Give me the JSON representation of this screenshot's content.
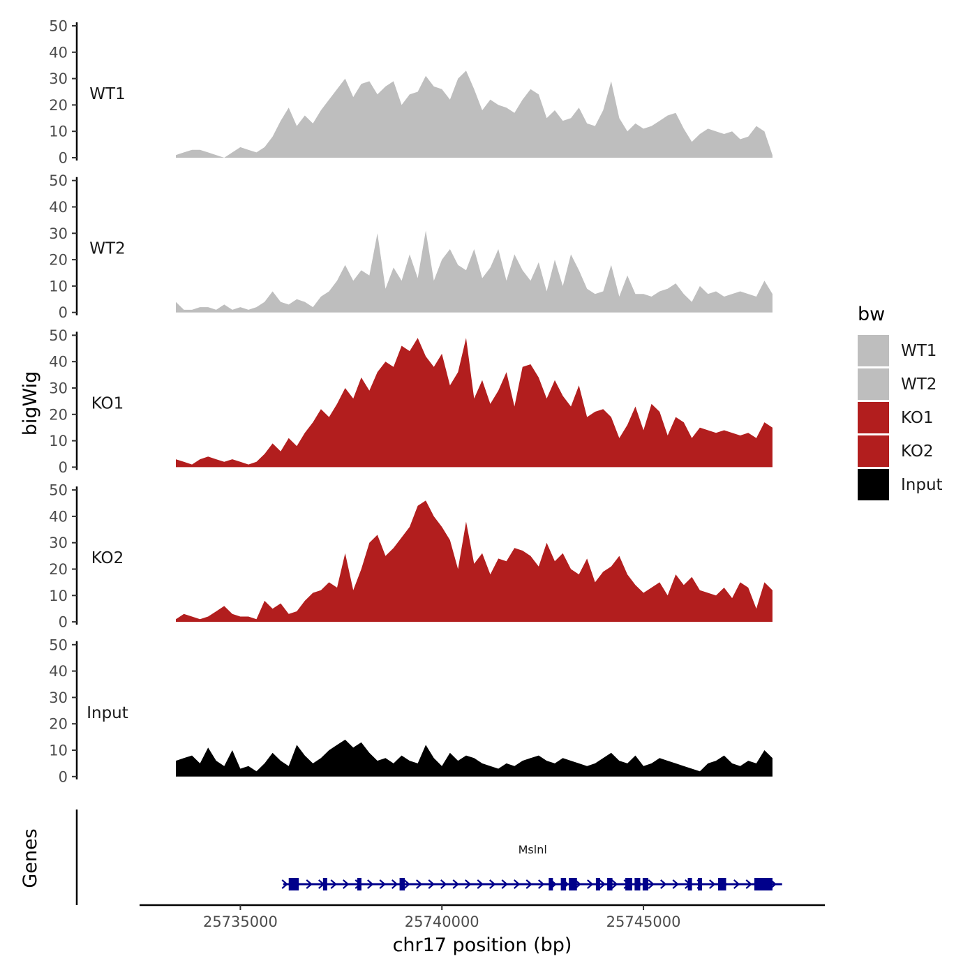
{
  "chart_data": {
    "type": "area",
    "x_axis": {
      "title": "chr17 position (bp)",
      "range": [
        25732500,
        25749500
      ],
      "ticks": [
        25735000,
        25740000,
        25745000
      ],
      "tick_labels": [
        "25735000",
        "25740000",
        "25745000"
      ]
    },
    "y_axis": {
      "title": "bigWig",
      "range": [
        0,
        50
      ],
      "ticks": [
        0,
        10,
        20,
        30,
        40,
        50
      ],
      "tick_labels": [
        "0",
        "10",
        "20",
        "30",
        "40",
        "50"
      ]
    },
    "tracks_panel_title": "Genes",
    "legend": {
      "title": "bw",
      "entries": [
        {
          "label": "WT1",
          "color": "#bebebe"
        },
        {
          "label": "WT2",
          "color": "#bebebe"
        },
        {
          "label": "KO1",
          "color": "#b21e1e"
        },
        {
          "label": "KO2",
          "color": "#b21e1e"
        },
        {
          "label": "Input",
          "color": "#000000"
        }
      ]
    },
    "series": [
      {
        "name": "WT1",
        "color": "#bebebe",
        "x": [
          25733400,
          25733600,
          25733800,
          25734000,
          25734200,
          25734400,
          25734600,
          25734800,
          25735000,
          25735200,
          25735400,
          25735600,
          25735800,
          25736000,
          25736200,
          25736400,
          25736600,
          25736800,
          25737000,
          25737200,
          25737400,
          25737600,
          25737800,
          25738000,
          25738200,
          25738400,
          25738600,
          25738800,
          25739000,
          25739200,
          25739400,
          25739600,
          25739800,
          25740000,
          25740200,
          25740400,
          25740600,
          25740800,
          25741000,
          25741200,
          25741400,
          25741600,
          25741800,
          25742000,
          25742200,
          25742400,
          25742600,
          25742800,
          25743000,
          25743200,
          25743400,
          25743600,
          25743800,
          25744000,
          25744200,
          25744400,
          25744600,
          25744800,
          25745000,
          25745200,
          25745400,
          25745600,
          25745800,
          25746000,
          25746200,
          25746400,
          25746600,
          25746800,
          25747000,
          25747200,
          25747400,
          25747600,
          25747800,
          25748000,
          25748200
        ],
        "values": [
          1,
          2,
          3,
          3,
          2,
          1,
          0,
          2,
          4,
          3,
          2,
          4,
          8,
          14,
          19,
          12,
          16,
          13,
          18,
          22,
          26,
          30,
          23,
          28,
          29,
          24,
          27,
          29,
          20,
          24,
          25,
          31,
          27,
          26,
          22,
          30,
          33,
          26,
          18,
          22,
          20,
          19,
          17,
          22,
          26,
          24,
          15,
          18,
          14,
          15,
          19,
          13,
          12,
          18,
          29,
          15,
          10,
          13,
          11,
          12,
          14,
          16,
          17,
          11,
          6,
          9,
          11,
          10,
          9,
          10,
          7,
          8,
          12,
          10,
          1
        ]
      },
      {
        "name": "WT2",
        "color": "#bebebe",
        "x": [
          25733400,
          25733600,
          25733800,
          25734000,
          25734200,
          25734400,
          25734600,
          25734800,
          25735000,
          25735200,
          25735400,
          25735600,
          25735800,
          25736000,
          25736200,
          25736400,
          25736600,
          25736800,
          25737000,
          25737200,
          25737400,
          25737600,
          25737800,
          25738000,
          25738200,
          25738400,
          25738600,
          25738800,
          25739000,
          25739200,
          25739400,
          25739600,
          25739800,
          25740000,
          25740200,
          25740400,
          25740600,
          25740800,
          25741000,
          25741200,
          25741400,
          25741600,
          25741800,
          25742000,
          25742200,
          25742400,
          25742600,
          25742800,
          25743000,
          25743200,
          25743400,
          25743600,
          25743800,
          25744000,
          25744200,
          25744400,
          25744600,
          25744800,
          25745000,
          25745200,
          25745400,
          25745600,
          25745800,
          25746000,
          25746200,
          25746400,
          25746600,
          25746800,
          25747000,
          25747200,
          25747400,
          25747600,
          25747800,
          25748000,
          25748200
        ],
        "values": [
          4,
          1,
          1,
          2,
          2,
          1,
          3,
          1,
          2,
          1,
          2,
          4,
          8,
          4,
          3,
          5,
          4,
          2,
          6,
          8,
          12,
          18,
          12,
          16,
          14,
          30,
          9,
          17,
          12,
          22,
          13,
          31,
          12,
          20,
          24,
          18,
          16,
          24,
          13,
          17,
          24,
          12,
          22,
          16,
          12,
          19,
          8,
          20,
          10,
          22,
          16,
          9,
          7,
          8,
          18,
          6,
          14,
          7,
          7,
          6,
          8,
          9,
          11,
          7,
          4,
          10,
          7,
          8,
          6,
          7,
          8,
          7,
          6,
          12,
          7
        ]
      },
      {
        "name": "KO1",
        "color": "#b21e1e",
        "x": [
          25733400,
          25733600,
          25733800,
          25734000,
          25734200,
          25734400,
          25734600,
          25734800,
          25735000,
          25735200,
          25735400,
          25735600,
          25735800,
          25736000,
          25736200,
          25736400,
          25736600,
          25736800,
          25737000,
          25737200,
          25737400,
          25737600,
          25737800,
          25738000,
          25738200,
          25738400,
          25738600,
          25738800,
          25739000,
          25739200,
          25739400,
          25739600,
          25739800,
          25740000,
          25740200,
          25740400,
          25740600,
          25740800,
          25741000,
          25741200,
          25741400,
          25741600,
          25741800,
          25742000,
          25742200,
          25742400,
          25742600,
          25742800,
          25743000,
          25743200,
          25743400,
          25743600,
          25743800,
          25744000,
          25744200,
          25744400,
          25744600,
          25744800,
          25745000,
          25745200,
          25745400,
          25745600,
          25745800,
          25746000,
          25746200,
          25746400,
          25746600,
          25746800,
          25747000,
          25747200,
          25747400,
          25747600,
          25747800,
          25748000,
          25748200
        ],
        "values": [
          3,
          2,
          1,
          3,
          4,
          3,
          2,
          3,
          2,
          1,
          2,
          5,
          9,
          6,
          11,
          8,
          13,
          17,
          22,
          19,
          24,
          30,
          26,
          34,
          29,
          36,
          40,
          38,
          46,
          44,
          49,
          42,
          38,
          43,
          31,
          36,
          49,
          26,
          33,
          24,
          29,
          36,
          23,
          38,
          39,
          34,
          26,
          33,
          27,
          23,
          31,
          19,
          21,
          22,
          19,
          11,
          16,
          23,
          14,
          24,
          21,
          12,
          19,
          17,
          11,
          15,
          14,
          13,
          14,
          13,
          12,
          13,
          11,
          17,
          15
        ]
      },
      {
        "name": "KO2",
        "color": "#b21e1e",
        "x": [
          25733400,
          25733600,
          25733800,
          25734000,
          25734200,
          25734400,
          25734600,
          25734800,
          25735000,
          25735200,
          25735400,
          25735600,
          25735800,
          25736000,
          25736200,
          25736400,
          25736600,
          25736800,
          25737000,
          25737200,
          25737400,
          25737600,
          25737800,
          25738000,
          25738200,
          25738400,
          25738600,
          25738800,
          25739000,
          25739200,
          25739400,
          25739600,
          25739800,
          25740000,
          25740200,
          25740400,
          25740600,
          25740800,
          25741000,
          25741200,
          25741400,
          25741600,
          25741800,
          25742000,
          25742200,
          25742400,
          25742600,
          25742800,
          25743000,
          25743200,
          25743400,
          25743600,
          25743800,
          25744000,
          25744200,
          25744400,
          25744600,
          25744800,
          25745000,
          25745200,
          25745400,
          25745600,
          25745800,
          25746000,
          25746200,
          25746400,
          25746600,
          25746800,
          25747000,
          25747200,
          25747400,
          25747600,
          25747800,
          25748000,
          25748200
        ],
        "values": [
          1,
          3,
          2,
          1,
          2,
          4,
          6,
          3,
          2,
          2,
          1,
          8,
          5,
          7,
          3,
          4,
          8,
          11,
          12,
          15,
          13,
          26,
          12,
          20,
          30,
          33,
          25,
          28,
          32,
          36,
          44,
          46,
          40,
          36,
          31,
          20,
          38,
          22,
          26,
          18,
          24,
          23,
          28,
          27,
          25,
          21,
          30,
          23,
          26,
          20,
          18,
          24,
          15,
          19,
          21,
          25,
          18,
          14,
          11,
          13,
          15,
          10,
          18,
          14,
          17,
          12,
          11,
          10,
          13,
          9,
          15,
          13,
          5,
          15,
          12
        ]
      },
      {
        "name": "Input",
        "color": "#000000",
        "x": [
          25733400,
          25733600,
          25733800,
          25734000,
          25734200,
          25734400,
          25734600,
          25734800,
          25735000,
          25735200,
          25735400,
          25735600,
          25735800,
          25736000,
          25736200,
          25736400,
          25736600,
          25736800,
          25737000,
          25737200,
          25737400,
          25737600,
          25737800,
          25738000,
          25738200,
          25738400,
          25738600,
          25738800,
          25739000,
          25739200,
          25739400,
          25739600,
          25739800,
          25740000,
          25740200,
          25740400,
          25740600,
          25740800,
          25741000,
          25741200,
          25741400,
          25741600,
          25741800,
          25742000,
          25742200,
          25742400,
          25742600,
          25742800,
          25743000,
          25743200,
          25743400,
          25743600,
          25743800,
          25744000,
          25744200,
          25744400,
          25744600,
          25744800,
          25745000,
          25745200,
          25745400,
          25745600,
          25745800,
          25746000,
          25746200,
          25746400,
          25746600,
          25746800,
          25747000,
          25747200,
          25747400,
          25747600,
          25747800,
          25748000,
          25748200
        ],
        "values": [
          6,
          7,
          8,
          5,
          11,
          6,
          4,
          10,
          3,
          4,
          2,
          5,
          9,
          6,
          4,
          12,
          8,
          5,
          7,
          10,
          12,
          14,
          11,
          13,
          9,
          6,
          7,
          5,
          8,
          6,
          5,
          12,
          7,
          4,
          9,
          6,
          8,
          7,
          5,
          4,
          3,
          5,
          4,
          6,
          7,
          8,
          6,
          5,
          7,
          6,
          5,
          4,
          5,
          7,
          9,
          6,
          5,
          8,
          4,
          5,
          7,
          6,
          5,
          4,
          3,
          2,
          5,
          6,
          8,
          5,
          4,
          6,
          5,
          10,
          7
        ]
      }
    ],
    "genes": [
      {
        "name": "Mslnl",
        "strand": "+",
        "start": 25736200,
        "end": 25748300,
        "exons": [
          [
            25736200,
            25736450
          ],
          [
            25737050,
            25737150
          ],
          [
            25737900,
            25738000
          ],
          [
            25738950,
            25739080
          ],
          [
            25742650,
            25742720
          ],
          [
            25742950,
            25743080
          ],
          [
            25743150,
            25743350
          ],
          [
            25743820,
            25743880
          ],
          [
            25744100,
            25744230
          ],
          [
            25744550,
            25744720
          ],
          [
            25744780,
            25744920
          ],
          [
            25744980,
            25745120
          ],
          [
            25746100,
            25746200
          ],
          [
            25746350,
            25746450
          ],
          [
            25746850,
            25747050
          ],
          [
            25747750,
            25748200
          ]
        ]
      }
    ]
  }
}
